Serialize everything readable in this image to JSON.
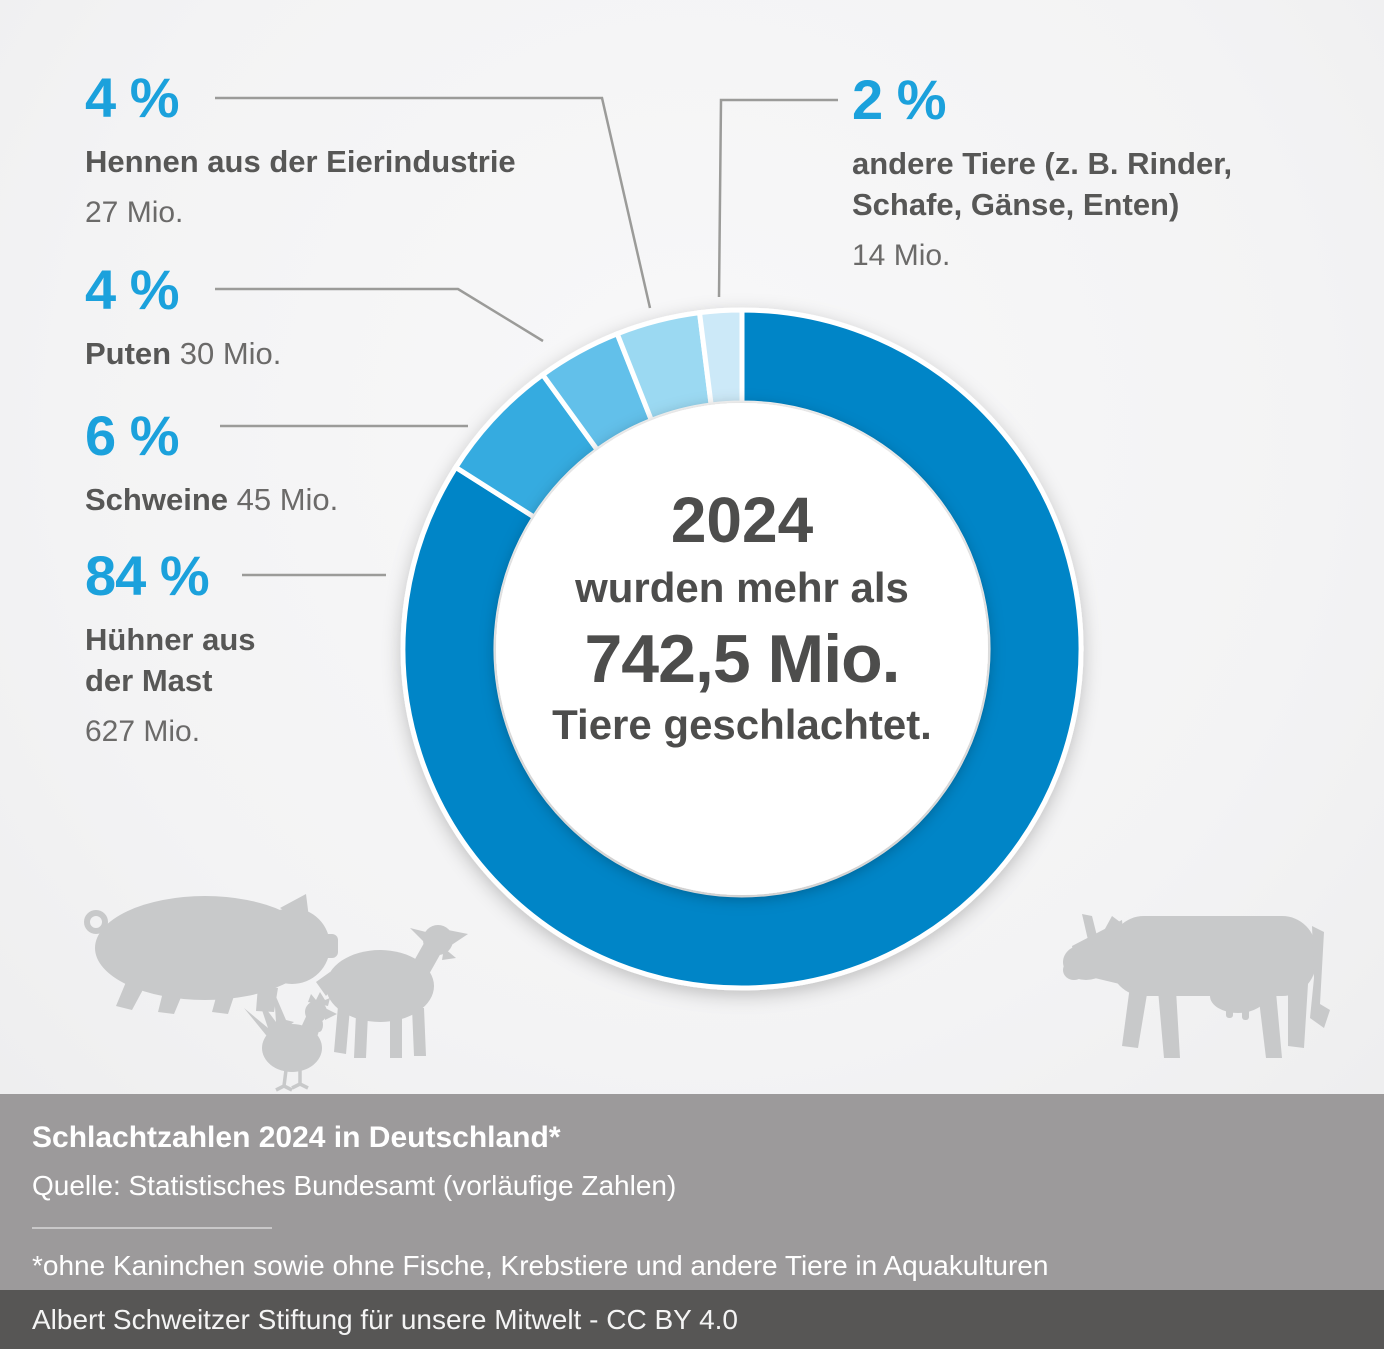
{
  "colors": {
    "accent_blue": "#1ba1dc",
    "text_dark": "#575756",
    "text_gray": "#6b6a69",
    "leader_line": "#9b9b99",
    "silhouette_gray": "#c8c9ca",
    "footer_gray": "#9c9a9b",
    "footer_dark": "#575655",
    "donut_gap": "#ffffff"
  },
  "chart_data": {
    "type": "pie",
    "donut": true,
    "title": "Schlachtzahlen 2024 in Deutschland*",
    "center_text": [
      "2024",
      "wurden mehr als",
      "742,5 Mio.",
      "Tiere geschlachtet."
    ],
    "direction": "clockwise",
    "start_angle_deg": 0,
    "segments": [
      {
        "label": "Hühner aus der Mast",
        "pct": 84,
        "value_mio": 627,
        "value_label": "627 Mio.",
        "color": "#0085c7"
      },
      {
        "label": "Schweine",
        "pct": 6,
        "value_mio": 45,
        "value_label": "45 Mio.",
        "color": "#36abe0"
      },
      {
        "label": "Puten",
        "pct": 4,
        "value_mio": 30,
        "value_label": "30 Mio.",
        "color": "#62c0ea"
      },
      {
        "label": "Hennen aus der Eierindustrie",
        "pct": 4,
        "value_mio": 27,
        "value_label": "27 Mio.",
        "color": "#9bd9f2"
      },
      {
        "label": "andere Tiere (z. B. Rinder, Schafe, Gänse, Enten)",
        "pct": 2,
        "value_mio": 14,
        "value_label": "14 Mio.",
        "color": "#cce9f8"
      }
    ]
  },
  "center": {
    "line1": "2024",
    "line2": "wurden mehr als",
    "line3": "742,5 Mio.",
    "line4": "Tiere geschlachtet."
  },
  "callouts": {
    "hennen": {
      "pct": "4 %",
      "name": "Hennen aus der Eierindustrie",
      "value": "27 Mio."
    },
    "puten": {
      "pct": "4 %",
      "name": "Puten",
      "value": "30 Mio."
    },
    "schweine": {
      "pct": "6 %",
      "name": "Schweine",
      "value": "45 Mio."
    },
    "huehner": {
      "pct": "84 %",
      "name1": "Hühner aus",
      "name2": "der Mast",
      "value": "627 Mio."
    },
    "andere": {
      "pct": "2 %",
      "name1": "andere Tiere (z. B. Rinder,",
      "name2": "Schafe, Gänse, Enten)",
      "value": "14 Mio."
    }
  },
  "footer": {
    "title": "Schlachtzahlen 2024 in Deutschland*",
    "source": "Quelle: Statistisches Bundesamt (vorläufige Zahlen)",
    "footnote": "*ohne Kaninchen sowie ohne Fische, Krebstiere und andere Tiere in Aquakulturen",
    "credit": "Albert Schweitzer Stiftung für unsere Mitwelt - CC BY 4.0"
  },
  "decor": {
    "animals": [
      "pig-silhouette",
      "lamb-silhouette",
      "chicken-silhouette",
      "cow-silhouette"
    ]
  }
}
